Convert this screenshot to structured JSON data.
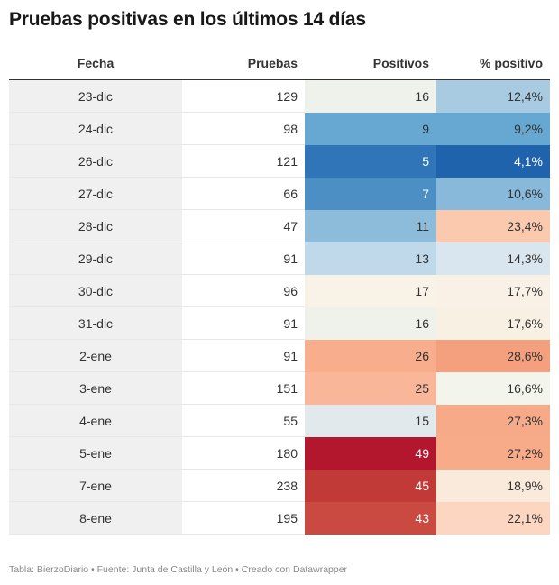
{
  "title": "Pruebas positivas en los últimos 14 días",
  "footer": "Tabla: BierzoDiario • Fuente: Junta de Castilla y León • Creado con Datawrapper",
  "chart_data": {
    "type": "table",
    "columns": [
      "Fecha",
      "Pruebas",
      "Positivos",
      "% positivo"
    ],
    "rows": [
      {
        "fecha": "23-dic",
        "pruebas": "129",
        "positivos": "16",
        "pct": "12,4%",
        "pos_color": "#eff1eb",
        "pct_color": "#a9cbe2"
      },
      {
        "fecha": "24-dic",
        "pruebas": "98",
        "positivos": "9",
        "pct": "9,2%",
        "pos_color": "#67a8d2",
        "pct_color": "#67a8d2"
      },
      {
        "fecha": "26-dic",
        "pruebas": "121",
        "positivos": "5",
        "pct": "4,1%",
        "pos_color": "#2f75b8",
        "pct_color": "#1f63ac"
      },
      {
        "fecha": "27-dic",
        "pruebas": "66",
        "positivos": "7",
        "pct": "10,6%",
        "pos_color": "#4c8fc5",
        "pct_color": "#88b8da"
      },
      {
        "fecha": "28-dic",
        "pruebas": "47",
        "positivos": "11",
        "pct": "23,4%",
        "pos_color": "#8dbcdb",
        "pct_color": "#fbc9ad"
      },
      {
        "fecha": "29-dic",
        "pruebas": "91",
        "positivos": "13",
        "pct": "14,3%",
        "pos_color": "#bfd8ea",
        "pct_color": "#d9e6ef"
      },
      {
        "fecha": "30-dic",
        "pruebas": "96",
        "positivos": "17",
        "pct": "17,7%",
        "pos_color": "#f9f2e6",
        "pct_color": "#f9f1e5"
      },
      {
        "fecha": "31-dic",
        "pruebas": "91",
        "positivos": "16",
        "pct": "17,6%",
        "pos_color": "#eff2eb",
        "pct_color": "#f8f0e3"
      },
      {
        "fecha": "2-ene",
        "pruebas": "91",
        "positivos": "26",
        "pct": "28,6%",
        "pos_color": "#f8ad8c",
        "pct_color": "#f4a07f"
      },
      {
        "fecha": "3-ene",
        "pruebas": "151",
        "positivos": "25",
        "pct": "16,6%",
        "pos_color": "#f9b698",
        "pct_color": "#f3f4ec"
      },
      {
        "fecha": "4-ene",
        "pruebas": "55",
        "positivos": "15",
        "pct": "27,3%",
        "pos_color": "#e1e9ed",
        "pct_color": "#f7aa87"
      },
      {
        "fecha": "5-ene",
        "pruebas": "180",
        "positivos": "49",
        "pct": "27,2%",
        "pos_color": "#b2172e",
        "pct_color": "#f7ab89"
      },
      {
        "fecha": "7-ene",
        "pruebas": "238",
        "positivos": "45",
        "pct": "18,9%",
        "pos_color": "#c23a38",
        "pct_color": "#faeadb"
      },
      {
        "fecha": "8-ene",
        "pruebas": "195",
        "positivos": "43",
        "pct": "22,1%",
        "pos_color": "#ca4a42",
        "pct_color": "#fcd6c0"
      }
    ]
  }
}
